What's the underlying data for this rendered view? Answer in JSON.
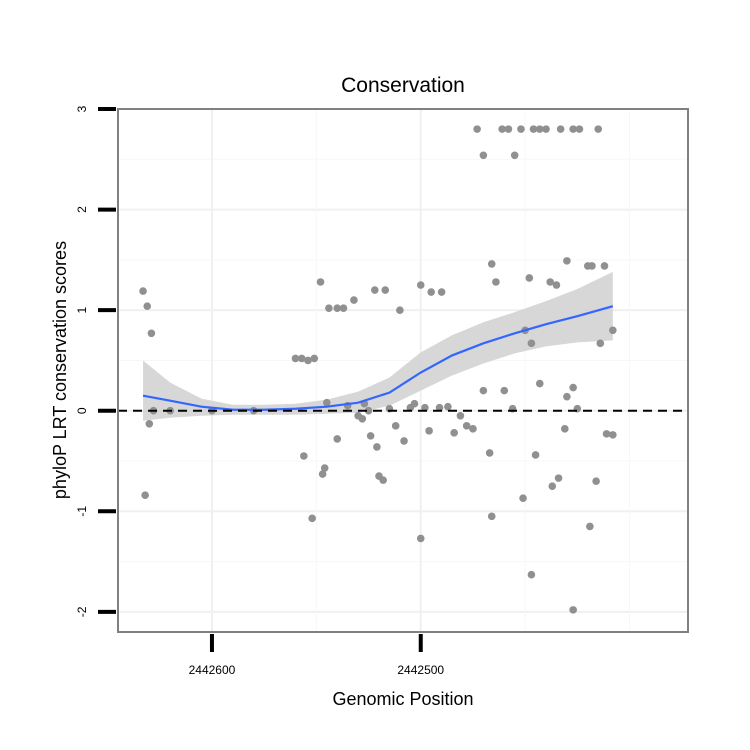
{
  "chart_data": {
    "type": "scatter",
    "title": "Conservation",
    "xlabel": "Genomic Position",
    "ylabel": "phyloP LRT conservation scores",
    "x_reversed": true,
    "xlim": [
      2442645,
      2442372
    ],
    "ylim": [
      -2.2,
      3
    ],
    "x_ticks": [
      {
        "value": 2442600,
        "label": "2442600"
      },
      {
        "value": 2442500,
        "label": "2442500"
      }
    ],
    "y_ticks": [
      {
        "value": -2,
        "label": "-2"
      },
      {
        "value": -1,
        "label": "-1"
      },
      {
        "value": 0,
        "label": "0"
      },
      {
        "value": 1,
        "label": "1"
      },
      {
        "value": 2,
        "label": "2"
      },
      {
        "value": 3,
        "label": "3"
      }
    ],
    "grid": true,
    "reference_line": {
      "y": 0,
      "style": "dashed"
    },
    "colors": {
      "points": "#909090",
      "smooth": "#3366ff",
      "band": "#d3d3d3",
      "panel_border": "#808080"
    },
    "points": [
      {
        "x": 2442633,
        "y": 1.19
      },
      {
        "x": 2442631,
        "y": 1.04
      },
      {
        "x": 2442629,
        "y": 0.77
      },
      {
        "x": 2442632,
        "y": -0.84
      },
      {
        "x": 2442630,
        "y": -0.13
      },
      {
        "x": 2442628,
        "y": 0.0
      },
      {
        "x": 2442560,
        "y": 0.52
      },
      {
        "x": 2442557,
        "y": 0.52
      },
      {
        "x": 2442554,
        "y": 0.5
      },
      {
        "x": 2442551,
        "y": 0.52
      },
      {
        "x": 2442548,
        "y": 1.28
      },
      {
        "x": 2442544,
        "y": 1.02
      },
      {
        "x": 2442540,
        "y": 1.02
      },
      {
        "x": 2442537,
        "y": 1.02
      },
      {
        "x": 2442532,
        "y": 1.1
      },
      {
        "x": 2442522,
        "y": 1.2
      },
      {
        "x": 2442517,
        "y": 1.2
      },
      {
        "x": 2442510,
        "y": 1.0
      },
      {
        "x": 2442500,
        "y": 1.25
      },
      {
        "x": 2442495,
        "y": 1.18
      },
      {
        "x": 2442490,
        "y": 1.18
      },
      {
        "x": 2442552,
        "y": -1.07
      },
      {
        "x": 2442556,
        "y": -0.45
      },
      {
        "x": 2442546,
        "y": -0.57
      },
      {
        "x": 2442547,
        "y": -0.63
      },
      {
        "x": 2442540,
        "y": -0.28
      },
      {
        "x": 2442545,
        "y": 0.08
      },
      {
        "x": 2442535,
        "y": 0.05
      },
      {
        "x": 2442530,
        "y": -0.05
      },
      {
        "x": 2442528,
        "y": -0.08
      },
      {
        "x": 2442527,
        "y": 0.07
      },
      {
        "x": 2442525,
        "y": 0.0
      },
      {
        "x": 2442524,
        "y": -0.25
      },
      {
        "x": 2442521,
        "y": -0.36
      },
      {
        "x": 2442520,
        "y": -0.65
      },
      {
        "x": 2442518,
        "y": -0.69
      },
      {
        "x": 2442515,
        "y": 0.02
      },
      {
        "x": 2442512,
        "y": -0.15
      },
      {
        "x": 2442508,
        "y": -0.3
      },
      {
        "x": 2442505,
        "y": 0.03
      },
      {
        "x": 2442503,
        "y": 0.07
      },
      {
        "x": 2442500,
        "y": -1.27
      },
      {
        "x": 2442498,
        "y": 0.03
      },
      {
        "x": 2442496,
        "y": -0.2
      },
      {
        "x": 2442491,
        "y": 0.03
      },
      {
        "x": 2442487,
        "y": 0.04
      },
      {
        "x": 2442484,
        "y": -0.22
      },
      {
        "x": 2442481,
        "y": -0.05
      },
      {
        "x": 2442478,
        "y": -0.15
      },
      {
        "x": 2442475,
        "y": -0.18
      },
      {
        "x": 2442473,
        "y": 2.8
      },
      {
        "x": 2442470,
        "y": 2.54
      },
      {
        "x": 2442466,
        "y": 1.46
      },
      {
        "x": 2442464,
        "y": 1.28
      },
      {
        "x": 2442461,
        "y": 2.8
      },
      {
        "x": 2442458,
        "y": 2.8
      },
      {
        "x": 2442455,
        "y": 2.54
      },
      {
        "x": 2442452,
        "y": 2.8
      },
      {
        "x": 2442448,
        "y": 1.32
      },
      {
        "x": 2442446,
        "y": 2.8
      },
      {
        "x": 2442443,
        "y": 2.8
      },
      {
        "x": 2442440,
        "y": 2.8
      },
      {
        "x": 2442438,
        "y": 1.28
      },
      {
        "x": 2442435,
        "y": 1.25
      },
      {
        "x": 2442433,
        "y": 2.8
      },
      {
        "x": 2442430,
        "y": 1.49
      },
      {
        "x": 2442427,
        "y": 2.8
      },
      {
        "x": 2442424,
        "y": 2.8
      },
      {
        "x": 2442420,
        "y": 1.44
      },
      {
        "x": 2442418,
        "y": 1.44
      },
      {
        "x": 2442415,
        "y": 2.8
      },
      {
        "x": 2442412,
        "y": 1.44
      },
      {
        "x": 2442450,
        "y": 0.8
      },
      {
        "x": 2442447,
        "y": 0.67
      },
      {
        "x": 2442470,
        "y": 0.2
      },
      {
        "x": 2442467,
        "y": -0.42
      },
      {
        "x": 2442466,
        "y": -1.05
      },
      {
        "x": 2442460,
        "y": 0.2
      },
      {
        "x": 2442456,
        "y": 0.02
      },
      {
        "x": 2442451,
        "y": -0.87
      },
      {
        "x": 2442445,
        "y": -0.44
      },
      {
        "x": 2442443,
        "y": 0.27
      },
      {
        "x": 2442437,
        "y": -0.75
      },
      {
        "x": 2442434,
        "y": -0.67
      },
      {
        "x": 2442431,
        "y": -0.18
      },
      {
        "x": 2442430,
        "y": 0.14
      },
      {
        "x": 2442427,
        "y": 0.23
      },
      {
        "x": 2442425,
        "y": 0.02
      },
      {
        "x": 2442419,
        "y": -1.15
      },
      {
        "x": 2442416,
        "y": -0.7
      },
      {
        "x": 2442414,
        "y": 0.67
      },
      {
        "x": 2442411,
        "y": -0.23
      },
      {
        "x": 2442408,
        "y": -0.24
      },
      {
        "x": 2442408,
        "y": 0.8
      },
      {
        "x": 2442447,
        "y": -1.63
      },
      {
        "x": 2442427,
        "y": -1.98
      },
      {
        "x": 2442580,
        "y": 0.0
      },
      {
        "x": 2442600,
        "y": 0.0
      },
      {
        "x": 2442620,
        "y": 0.0
      }
    ],
    "smooth_line": [
      {
        "x": 2442633,
        "y": 0.15,
        "lo": -0.1,
        "hi": 0.5
      },
      {
        "x": 2442620,
        "y": 0.1,
        "lo": -0.07,
        "hi": 0.28
      },
      {
        "x": 2442605,
        "y": 0.04,
        "lo": -0.05,
        "hi": 0.12
      },
      {
        "x": 2442590,
        "y": 0.01,
        "lo": -0.04,
        "hi": 0.06
      },
      {
        "x": 2442575,
        "y": 0.01,
        "lo": -0.04,
        "hi": 0.06
      },
      {
        "x": 2442560,
        "y": 0.02,
        "lo": -0.04,
        "hi": 0.07
      },
      {
        "x": 2442545,
        "y": 0.04,
        "lo": -0.03,
        "hi": 0.11
      },
      {
        "x": 2442530,
        "y": 0.08,
        "lo": -0.02,
        "hi": 0.19
      },
      {
        "x": 2442515,
        "y": 0.18,
        "lo": 0.05,
        "hi": 0.33
      },
      {
        "x": 2442500,
        "y": 0.38,
        "lo": 0.2,
        "hi": 0.58
      },
      {
        "x": 2442485,
        "y": 0.55,
        "lo": 0.35,
        "hi": 0.75
      },
      {
        "x": 2442470,
        "y": 0.67,
        "lo": 0.47,
        "hi": 0.88
      },
      {
        "x": 2442455,
        "y": 0.77,
        "lo": 0.57,
        "hi": 0.98
      },
      {
        "x": 2442440,
        "y": 0.86,
        "lo": 0.64,
        "hi": 1.09
      },
      {
        "x": 2442425,
        "y": 0.94,
        "lo": 0.68,
        "hi": 1.21
      },
      {
        "x": 2442408,
        "y": 1.04,
        "lo": 0.7,
        "hi": 1.38
      }
    ]
  }
}
